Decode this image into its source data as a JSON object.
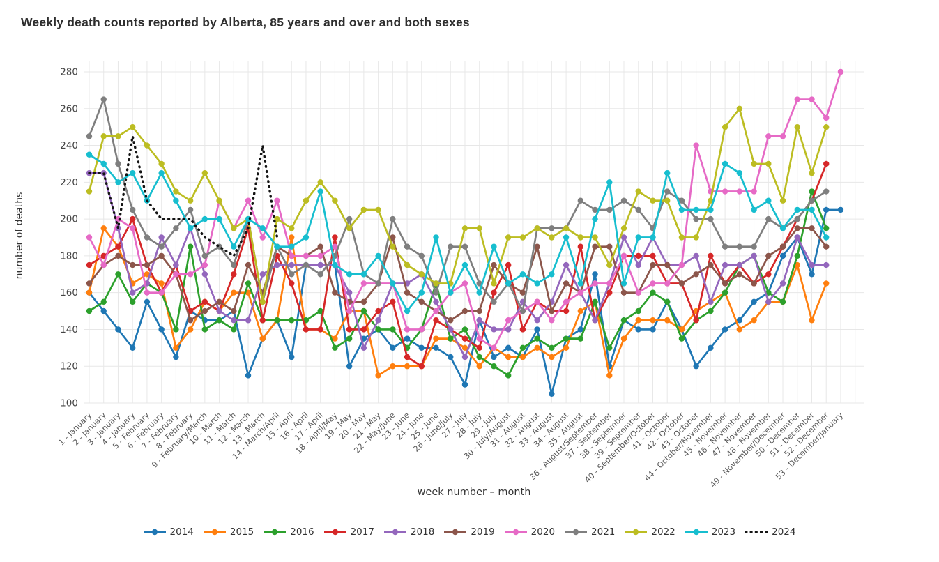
{
  "title": "Weekly death counts reported by Alberta, 85 years and over and both sexes",
  "axes": {
    "y_title": "number of deaths",
    "x_title": "week number – month",
    "y_ticks": [
      100,
      120,
      140,
      160,
      180,
      200,
      220,
      240,
      260,
      280
    ],
    "y_min": 100,
    "y_max": 280
  },
  "chart_data": {
    "type": "line",
    "title": "Weekly death counts reported by Alberta, 85 years and over and both sexes",
    "xlabel": "week number – month",
    "ylabel": "number of deaths",
    "ylim": [
      100,
      280
    ],
    "grid": true,
    "legend_position": "bottom",
    "categories": [
      "1 - January",
      "2 - January",
      "3 - January",
      "4 - January",
      "5 - February",
      "6 - February",
      "7 - February",
      "8 - February",
      "9 - February/March",
      "10 - March",
      "11 - March",
      "12 - March",
      "13 - March",
      "14 - March/April",
      "15 - April",
      "16 - April",
      "17 - April",
      "18 - April/May",
      "19 - May",
      "20 - May",
      "21 - May",
      "22 - May/June",
      "23 - June",
      "24 - June",
      "25 - June",
      "26 - June/July",
      "27 - July",
      "28 - July",
      "29 - July",
      "30 - July/August",
      "31 - August",
      "32 - August",
      "33 - August",
      "34 - August",
      "35 - August",
      "36 - August/September",
      "37 - September",
      "38 - September",
      "39 - September",
      "40 - September/October",
      "41 - October",
      "42 - October",
      "43 - October",
      "44 - October/November",
      "45 - November",
      "46 - November",
      "47 - November",
      "48 - November",
      "49 - November/December",
      "50 - December",
      "51 - December",
      "52 - December",
      "53 - December/January"
    ],
    "series": [
      {
        "name": "2014",
        "color": "#1f77b4",
        "style": "solid",
        "values": [
          160,
          150,
          140,
          130,
          155,
          140,
          125,
          150,
          145,
          145,
          150,
          115,
          135,
          145,
          125,
          175,
          175,
          175,
          120,
          135,
          140,
          130,
          135,
          130,
          130,
          125,
          110,
          145,
          125,
          130,
          125,
          140,
          105,
          135,
          140,
          170,
          120,
          145,
          140,
          140,
          155,
          140,
          120,
          130,
          140,
          145,
          155,
          160,
          180,
          190,
          170,
          205,
          205
        ]
      },
      {
        "name": "2015",
        "color": "#ff7f0e",
        "style": "solid",
        "values": [
          160,
          195,
          185,
          165,
          170,
          165,
          130,
          140,
          155,
          150,
          160,
          160,
          135,
          145,
          190,
          140,
          140,
          135,
          150,
          150,
          115,
          120,
          120,
          120,
          135,
          135,
          130,
          120,
          130,
          125,
          125,
          130,
          125,
          130,
          150,
          155,
          115,
          135,
          145,
          145,
          145,
          140,
          150,
          155,
          160,
          140,
          145,
          155,
          155,
          175,
          145,
          165
        ]
      },
      {
        "name": "2016",
        "color": "#2ca02c",
        "style": "solid",
        "values": [
          150,
          155,
          170,
          155,
          165,
          160,
          140,
          185,
          140,
          145,
          140,
          165,
          145,
          145,
          145,
          145,
          150,
          130,
          135,
          150,
          140,
          140,
          130,
          140,
          165,
          135,
          140,
          125,
          120,
          115,
          130,
          135,
          130,
          135,
          135,
          155,
          130,
          145,
          150,
          160,
          155,
          135,
          145,
          150,
          160,
          175,
          180,
          160,
          155,
          180,
          215,
          195
        ]
      },
      {
        "name": "2017",
        "color": "#d62728",
        "style": "solid",
        "values": [
          175,
          180,
          185,
          200,
          175,
          160,
          175,
          150,
          155,
          150,
          170,
          195,
          145,
          180,
          165,
          140,
          140,
          190,
          140,
          140,
          150,
          155,
          125,
          120,
          145,
          140,
          135,
          130,
          160,
          175,
          140,
          155,
          150,
          150,
          185,
          145,
          160,
          180,
          180,
          180,
          165,
          165,
          145,
          180,
          165,
          175,
          165,
          170,
          185,
          200,
          210,
          230
        ]
      },
      {
        "name": "2018",
        "color": "#9467bd",
        "style": "solid",
        "values": [
          225,
          225,
          195,
          160,
          165,
          190,
          175,
          195,
          170,
          150,
          145,
          145,
          170,
          175,
          175,
          175,
          175,
          175,
          160,
          130,
          145,
          165,
          165,
          170,
          155,
          140,
          125,
          145,
          140,
          140,
          155,
          145,
          155,
          175,
          160,
          145,
          165,
          190,
          175,
          190,
          175,
          175,
          180,
          155,
          175,
          175,
          180,
          155,
          165,
          190,
          175,
          175
        ]
      },
      {
        "name": "2019",
        "color": "#8c564b",
        "style": "solid",
        "values": [
          165,
          175,
          180,
          175,
          175,
          180,
          170,
          145,
          150,
          155,
          150,
          175,
          160,
          185,
          180,
          180,
          185,
          160,
          155,
          155,
          165,
          190,
          160,
          155,
          150,
          145,
          150,
          150,
          175,
          165,
          160,
          185,
          150,
          165,
          160,
          185,
          185,
          160,
          160,
          175,
          175,
          165,
          170,
          175,
          165,
          170,
          165,
          180,
          185,
          195,
          195,
          185
        ]
      },
      {
        "name": "2020",
        "color": "#e66ac6",
        "style": "solid",
        "values": [
          190,
          175,
          200,
          195,
          160,
          160,
          170,
          170,
          175,
          210,
          195,
          210,
          190,
          210,
          180,
          180,
          180,
          185,
          150,
          165,
          165,
          165,
          140,
          140,
          150,
          160,
          165,
          135,
          130,
          145,
          150,
          155,
          145,
          155,
          160,
          165,
          165,
          180,
          160,
          165,
          165,
          175,
          240,
          215,
          215,
          215,
          215,
          245,
          245,
          265,
          265,
          255,
          280
        ]
      },
      {
        "name": "2021",
        "color": "#7f7f7f",
        "style": "solid",
        "values": [
          245,
          265,
          230,
          205,
          190,
          185,
          195,
          205,
          180,
          185,
          175,
          200,
          155,
          185,
          170,
          175,
          170,
          180,
          200,
          170,
          165,
          200,
          185,
          180,
          160,
          185,
          185,
          165,
          155,
          165,
          150,
          195,
          195,
          195,
          210,
          205,
          205,
          210,
          205,
          195,
          215,
          210,
          200,
          200,
          185,
          185,
          185,
          200,
          195,
          200,
          210,
          215
        ]
      },
      {
        "name": "2022",
        "color": "#bcbd22",
        "style": "solid",
        "values": [
          215,
          245,
          245,
          250,
          240,
          230,
          215,
          210,
          225,
          210,
          195,
          200,
          155,
          200,
          195,
          210,
          220,
          210,
          195,
          205,
          205,
          185,
          175,
          170,
          165,
          165,
          195,
          195,
          165,
          190,
          190,
          195,
          190,
          195,
          190,
          190,
          175,
          195,
          215,
          210,
          210,
          190,
          190,
          210,
          250,
          260,
          230,
          230,
          210,
          250,
          225,
          250
        ]
      },
      {
        "name": "2023",
        "color": "#17becf",
        "style": "solid",
        "values": [
          235,
          230,
          220,
          225,
          210,
          225,
          210,
          195,
          200,
          200,
          185,
          200,
          195,
          185,
          185,
          190,
          215,
          175,
          170,
          170,
          180,
          165,
          150,
          160,
          190,
          160,
          175,
          160,
          185,
          165,
          170,
          165,
          170,
          190,
          165,
          200,
          220,
          165,
          190,
          190,
          225,
          205,
          205,
          205,
          230,
          225,
          205,
          210,
          195,
          205,
          205,
          190
        ]
      },
      {
        "name": "2024",
        "color": "#141414",
        "style": "dotted",
        "values": [
          225,
          225,
          195,
          245,
          210,
          200,
          200,
          200,
          190,
          185,
          180,
          195,
          240,
          190
        ]
      }
    ]
  }
}
